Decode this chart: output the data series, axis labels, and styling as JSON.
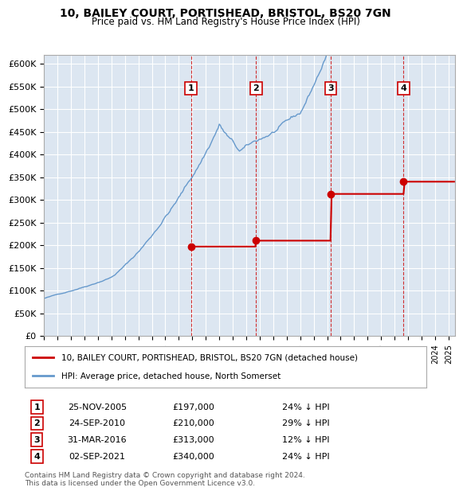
{
  "title": "10, BAILEY COURT, PORTISHEAD, BRISTOL, BS20 7GN",
  "subtitle": "Price paid vs. HM Land Registry's House Price Index (HPI)",
  "ylabel_ticks": [
    "£0",
    "£50K",
    "£100K",
    "£150K",
    "£200K",
    "£250K",
    "£300K",
    "£350K",
    "£400K",
    "£450K",
    "£500K",
    "£550K",
    "£600K"
  ],
  "ytick_values": [
    0,
    50000,
    100000,
    150000,
    200000,
    250000,
    300000,
    350000,
    400000,
    450000,
    500000,
    550000,
    600000
  ],
  "background_color": "#dce6f1",
  "plot_bg_color": "#dce6f1",
  "hpi_color": "#6699cc",
  "price_color": "#cc0000",
  "sale_marker_color": "#cc0000",
  "dashed_line_color": "#cc0000",
  "transactions": [
    {
      "num": 1,
      "date": "25-NOV-2005",
      "price": 197000,
      "pct": "24%",
      "x_year": 2005.9
    },
    {
      "num": 2,
      "date": "24-SEP-2010",
      "price": 210000,
      "pct": "29%",
      "x_year": 2010.73
    },
    {
      "num": 3,
      "date": "31-MAR-2016",
      "price": 313000,
      "pct": "12%",
      "x_year": 2016.25
    },
    {
      "num": 4,
      "date": "02-SEP-2021",
      "price": 340000,
      "pct": "24%",
      "x_year": 2021.67
    }
  ],
  "legend_label_price": "10, BAILEY COURT, PORTISHEAD, BRISTOL, BS20 7GN (detached house)",
  "legend_label_hpi": "HPI: Average price, detached house, North Somerset",
  "footer": "Contains HM Land Registry data © Crown copyright and database right 2024.\nThis data is licensed under the Open Government Licence v3.0.",
  "xmin": 1995,
  "xmax": 2025.5,
  "ymin": 0,
  "ymax": 620000
}
